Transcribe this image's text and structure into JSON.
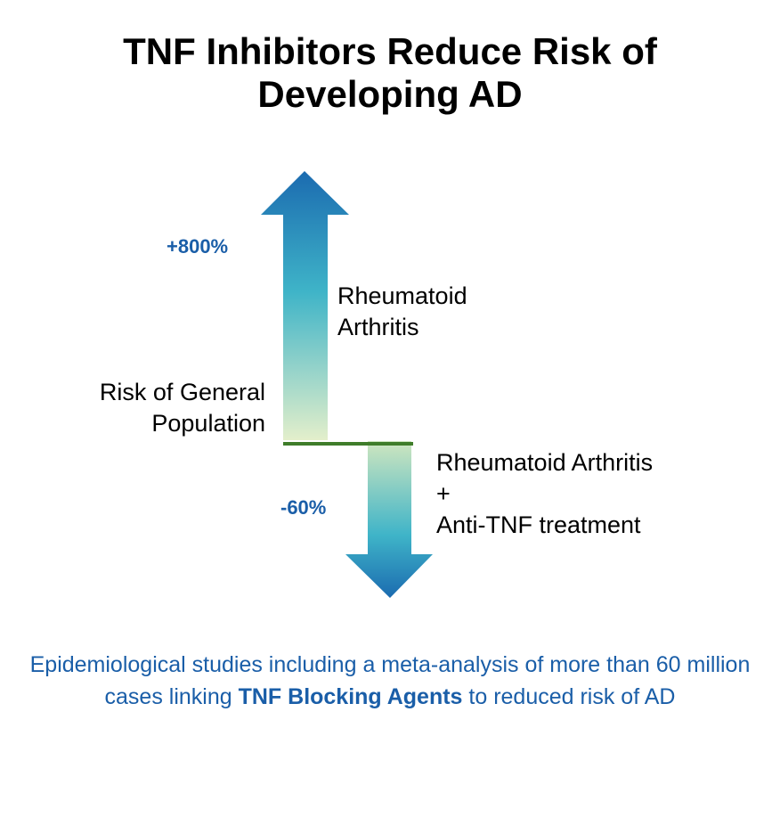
{
  "title": {
    "line1": "TNF Inhibitors Reduce Risk of",
    "line2": "Developing AD"
  },
  "diagram": {
    "up_arrow": {
      "percent": "+800%",
      "label_line1": "Rheumatoid",
      "label_line2": "Arthritis",
      "colors": {
        "tip": "#1b6bb0",
        "mid": "#3fb4c8",
        "base": "#e3efcb"
      }
    },
    "baseline": {
      "label_line1": "Risk of General",
      "label_line2": "Population",
      "color": "#3f7d2a"
    },
    "down_arrow": {
      "percent": "-60%",
      "label_line1": "Rheumatoid Arthritis",
      "label_line2": "+",
      "label_line3": "Anti-TNF treatment",
      "colors": {
        "base": "#cfe6bf",
        "mid": "#3fb4c8",
        "tip": "#1b6bb0"
      }
    }
  },
  "caption": {
    "text_before": "Epidemiological studies including a meta-analysis of more than 60 million cases linking ",
    "emphasis": "TNF Blocking Agents",
    "text_after": " to reduced risk of AD"
  }
}
